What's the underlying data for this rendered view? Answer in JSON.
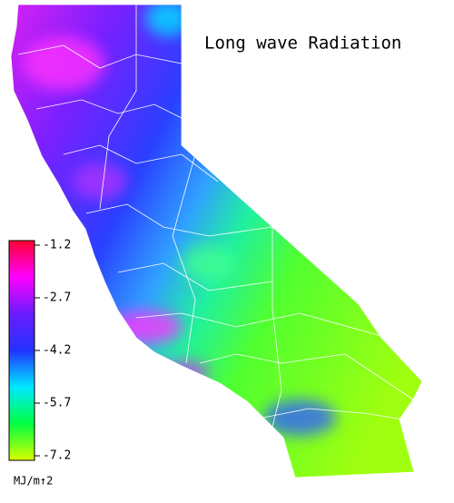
{
  "map": {
    "title": "Long wave Radiation",
    "colorbar": {
      "ticks": [
        -1.2,
        -2.7,
        -4.2,
        -5.7,
        -7.2
      ],
      "unit": "MJ/m↑2",
      "colors": [
        "#ff0030",
        "#ff00ff",
        "#6a1cff",
        "#2233ff",
        "#00e8ff",
        "#00ff40",
        "#d8ff00"
      ]
    }
  }
}
